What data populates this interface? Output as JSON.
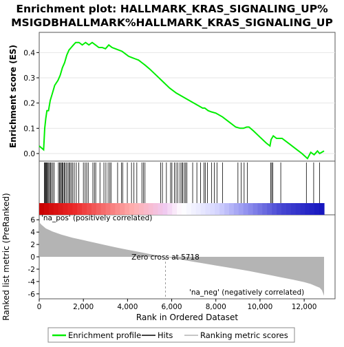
{
  "title_line1": "Enrichment plot: HALLMARK_KRAS_SIGNALING_UP%",
  "title_line2": "MSIGDBHALLMARK%HALLMARK_KRAS_SIGNALING_UP",
  "es_axis_label": "Enrichment score (ES)",
  "metric_axis_label": "Ranked list metric (PreRanked)",
  "x_axis_label": "Rank in Ordered Dataset",
  "pos_label": "'na_pos' (positively correlated)",
  "neg_label": "'na_neg' (negatively correlated)",
  "zero_cross_label": "Zero cross at 5718",
  "legend": {
    "profile": "Enrichment profile",
    "hits": "Hits",
    "metric": "Ranking metric scores"
  },
  "colors": {
    "profile": "#00ee00",
    "pos_label": "#dd0000",
    "neg_label": "#0000dd",
    "metric_fill": "#b4b4b4"
  },
  "chart_data": {
    "type": "line",
    "n_genes": 12900,
    "zero_cross": 5718,
    "x_ticks": [
      0,
      2000,
      4000,
      6000,
      8000,
      10000,
      12000
    ],
    "x_tick_labels": [
      "0",
      "2,000",
      "4,000",
      "6,000",
      "8,000",
      "10,000",
      "12,000"
    ],
    "es_ylim": [
      -0.03,
      0.48
    ],
    "es_ticks": [
      0.0,
      0.1,
      0.2,
      0.3,
      0.4
    ],
    "es_tick_labels": [
      "0.0",
      "0.1",
      "0.2",
      "0.3",
      "0.4"
    ],
    "metric_ylim": [
      -6.8,
      6.8
    ],
    "metric_ticks": [
      6,
      4,
      2,
      0,
      -2,
      -4,
      -6
    ],
    "metric_tick_labels": [
      "6",
      "4",
      "2",
      "0",
      "-2",
      "-4",
      "-6"
    ],
    "es_profile": {
      "x": [
        0,
        200,
        250,
        300,
        350,
        420,
        500,
        600,
        700,
        850,
        950,
        1050,
        1150,
        1250,
        1350,
        1450,
        1550,
        1650,
        1800,
        1950,
        2100,
        2250,
        2400,
        2550,
        2700,
        2850,
        3000,
        3150,
        3300,
        3450,
        3600,
        3750,
        3900,
        4050,
        4200,
        4350,
        4500,
        4650,
        4800,
        5000,
        5300,
        5600,
        5900,
        6200,
        6500,
        6800,
        7100,
        7400,
        7500,
        7650,
        7800,
        8000,
        8300,
        8600,
        8900,
        9100,
        9250,
        9400,
        9500,
        9700,
        10000,
        10300,
        10450,
        10500,
        10600,
        10750,
        10900,
        11000,
        11300,
        11600,
        11900,
        12150,
        12300,
        12450,
        12600,
        12700,
        12900
      ],
      "y": [
        0.03,
        0.015,
        0.1,
        0.14,
        0.17,
        0.17,
        0.21,
        0.24,
        0.27,
        0.29,
        0.31,
        0.34,
        0.36,
        0.39,
        0.41,
        0.42,
        0.43,
        0.44,
        0.44,
        0.43,
        0.44,
        0.43,
        0.44,
        0.43,
        0.42,
        0.42,
        0.415,
        0.43,
        0.42,
        0.415,
        0.41,
        0.405,
        0.395,
        0.385,
        0.38,
        0.375,
        0.37,
        0.36,
        0.35,
        0.335,
        0.31,
        0.285,
        0.26,
        0.24,
        0.225,
        0.21,
        0.195,
        0.18,
        0.18,
        0.17,
        0.165,
        0.16,
        0.145,
        0.125,
        0.105,
        0.1,
        0.1,
        0.105,
        0.105,
        0.09,
        0.065,
        0.04,
        0.03,
        0.055,
        0.07,
        0.06,
        0.06,
        0.06,
        0.04,
        0.02,
        0.0,
        -0.02,
        0.005,
        -0.005,
        0.01,
        0.0,
        0.01
      ]
    },
    "hit_ranks": [
      230,
      260,
      290,
      320,
      350,
      380,
      430,
      470,
      510,
      560,
      620,
      680,
      870,
      920,
      960,
      1000,
      1040,
      1080,
      1130,
      1170,
      1230,
      1300,
      1350,
      1400,
      1460,
      1520,
      1590,
      1680,
      1790,
      2000,
      2080,
      2150,
      2220,
      2430,
      2500,
      2560,
      2750,
      2930,
      3020,
      3120,
      3200,
      3250,
      3550,
      3720,
      3780,
      3990,
      4180,
      4290,
      4420,
      4650,
      4720,
      4790,
      5500,
      5580,
      5760,
      5950,
      6010,
      6120,
      6200,
      6280,
      6380,
      6450,
      6500,
      6570,
      6630,
      6690,
      6950,
      7140,
      7310,
      7460,
      7520,
      7620,
      7810,
      7930,
      8050,
      8300,
      9000,
      9150,
      9280,
      9430,
      10480,
      10530,
      10580,
      10940,
      12100,
      12430,
      12700
    ],
    "metric_curve": {
      "x": [
        0,
        100,
        300,
        600,
        1000,
        1500,
        2000,
        2500,
        3000,
        3500,
        4000,
        4500,
        5000,
        5718,
        6500,
        7000,
        7500,
        8000,
        8500,
        9000,
        9500,
        10000,
        10500,
        11000,
        11500,
        12000,
        12300,
        12500,
        12700,
        12800,
        12900
      ],
      "y": [
        5.6,
        5.2,
        4.6,
        4.1,
        3.6,
        3.1,
        2.7,
        2.3,
        1.9,
        1.5,
        1.15,
        0.8,
        0.45,
        0.0,
        -0.5,
        -0.8,
        -1.1,
        -1.4,
        -1.7,
        -2.0,
        -2.3,
        -2.65,
        -3.0,
        -3.35,
        -3.7,
        -4.1,
        -4.4,
        -4.7,
        -5.0,
        -5.4,
        -6.3
      ]
    }
  }
}
